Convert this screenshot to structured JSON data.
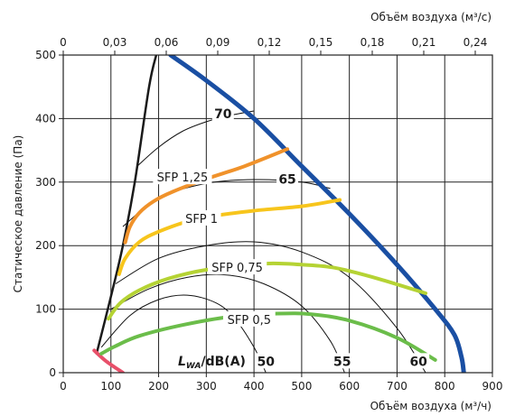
{
  "chart_data": {
    "type": "line",
    "xlabel": "Объём воздуха (м³/ч)",
    "xlabel_top": "Объём воздуха (м³/с)",
    "ylabel": "Статическое давление (Па)",
    "xlim": [
      0,
      900
    ],
    "ylim": [
      0,
      500
    ],
    "xlim_top": [
      0,
      0.25
    ],
    "x_ticks": [
      "0",
      "100",
      "200",
      "300",
      "400",
      "500",
      "600",
      "700",
      "800",
      "900"
    ],
    "x_ticks_top": [
      "0",
      "0,03",
      "0,06",
      "0,09",
      "0,12",
      "0,15",
      "0,18",
      "0,21",
      "0,24"
    ],
    "y_ticks": [
      "0",
      "100",
      "200",
      "300",
      "400",
      "500"
    ],
    "grid": true,
    "series": [
      {
        "kind": "fan-curve",
        "color": "#1a4fa3",
        "x": [
          225,
          300,
          400,
          500,
          600,
          700,
          780,
          820,
          835,
          840
        ],
        "y": [
          500,
          460,
          400,
          325,
          250,
          170,
          100,
          60,
          25,
          0
        ]
      },
      {
        "kind": "system-limit",
        "color": "#1a1a1a",
        "x": [
          70,
          100,
          125,
          150,
          180,
          195
        ],
        "y": [
          30,
          120,
          200,
          300,
          450,
          500
        ]
      },
      {
        "kind": "lower-limit",
        "color": "#e8506a",
        "x": [
          65,
          90,
          125
        ],
        "y": [
          35,
          18,
          0
        ]
      },
      {
        "kind": "sfp",
        "name": "SFP 1,25",
        "color": "#f0922b",
        "x": [
          130,
          140,
          160,
          190,
          230,
          300,
          380,
          470
        ],
        "y": [
          205,
          230,
          252,
          270,
          285,
          305,
          325,
          352
        ]
      },
      {
        "kind": "sfp",
        "name": "SFP 1",
        "color": "#f7c51c",
        "x": [
          117,
          130,
          160,
          200,
          260,
          300,
          400,
          500,
          580
        ],
        "y": [
          155,
          180,
          206,
          222,
          238,
          245,
          255,
          262,
          272
        ]
      },
      {
        "kind": "sfp",
        "name": "SFP 0,75",
        "color": "#b5d334",
        "x": [
          95,
          120,
          160,
          220,
          300,
          400,
          440,
          500,
          570,
          660,
          760
        ],
        "y": [
          85,
          110,
          130,
          148,
          162,
          170,
          172,
          170,
          165,
          148,
          125
        ]
      },
      {
        "kind": "sfp",
        "name": "SFP 0,5",
        "color": "#6bbd4a",
        "x": [
          80,
          110,
          160,
          250,
          350,
          450,
          520,
          600,
          700,
          780
        ],
        "y": [
          30,
          42,
          58,
          75,
          88,
          93,
          92,
          82,
          55,
          20
        ]
      }
    ],
    "sound_curves": [
      {
        "label": "70",
        "x": [
          155,
          200,
          250,
          300,
          350,
          400
        ],
        "y": [
          325,
          355,
          380,
          395,
          405,
          412
        ]
      },
      {
        "label": "65",
        "x": [
          125,
          200,
          300,
          400,
          500,
          560
        ],
        "y": [
          230,
          275,
          298,
          304,
          300,
          290
        ]
      },
      {
        "label": "60",
        "x": [
          110,
          200,
          300,
          400,
          500,
          600,
          700,
          760
        ],
        "y": [
          140,
          180,
          200,
          206,
          190,
          150,
          70,
          0
        ]
      },
      {
        "label": "55",
        "x": [
          100,
          180,
          260,
          340,
          420,
          500,
          560,
          590
        ],
        "y": [
          100,
          132,
          150,
          154,
          140,
          105,
          50,
          0
        ]
      },
      {
        "label": "50",
        "x": [
          80,
          140,
          200,
          260,
          320,
          360,
          400,
          425
        ],
        "y": [
          40,
          90,
          115,
          122,
          110,
          85,
          40,
          0
        ]
      }
    ],
    "labels": {
      "lwa_main": "L",
      "lwa_sub": "WA",
      "lwa_unit": "/dB(A)"
    }
  }
}
